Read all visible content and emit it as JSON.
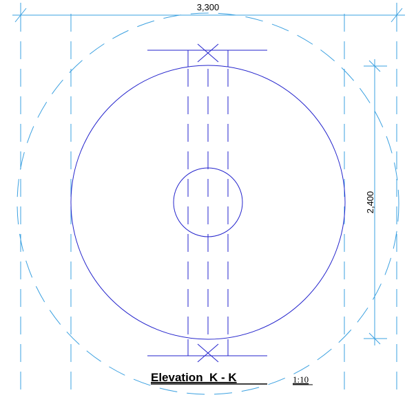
{
  "drawing": {
    "dimension_width": "3,300",
    "dimension_height": "2,400",
    "view_title": "Elevation  K - K",
    "scale": "1:10"
  },
  "colors": {
    "object_lines": "#2222cc",
    "dimension_lines": "#3aa0e0",
    "text": "#000000",
    "background": "#ffffff"
  }
}
